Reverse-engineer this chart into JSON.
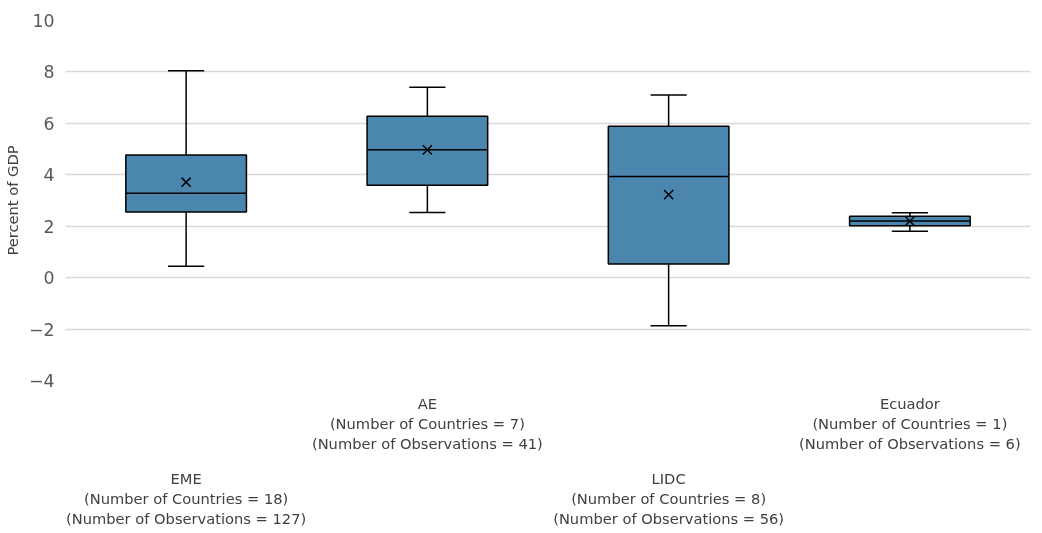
{
  "chart_data": {
    "type": "box",
    "ylabel": "Percent of GDP",
    "categories": [
      "EME\n(Number of Countries = 18)\n(Number of Observations = 127)",
      "AE\n(Number of Countries = 7)\n(Number of Observations = 41)",
      "LIDC\n(Number of Countries = 8)\n(Number of Observations = 56)",
      "Ecuador\n(Number of Countries = 1)\n(Number of Observations = 6)"
    ],
    "series": [
      {
        "color": "#4a86ae",
        "boxes": [
          {
            "low": 0.44,
            "q1": 2.55,
            "median": 3.28,
            "q3": 4.77,
            "high": 8.05,
            "mean": 3.71
          },
          {
            "low": 2.53,
            "q1": 3.59,
            "median": 4.97,
            "q3": 6.28,
            "high": 7.4,
            "mean": 4.97
          },
          {
            "low": -1.87,
            "q1": 0.53,
            "median": 3.93,
            "q3": 5.89,
            "high": 7.1,
            "mean": 3.23
          },
          {
            "low": 1.8,
            "q1": 2.02,
            "median": 2.2,
            "q3": 2.39,
            "high": 2.52,
            "mean": 2.2
          }
        ]
      }
    ],
    "ylim": [
      -4,
      10
    ],
    "yticks": [
      -4,
      -2,
      0,
      2,
      4,
      6,
      8,
      10
    ],
    "grid": "y"
  }
}
